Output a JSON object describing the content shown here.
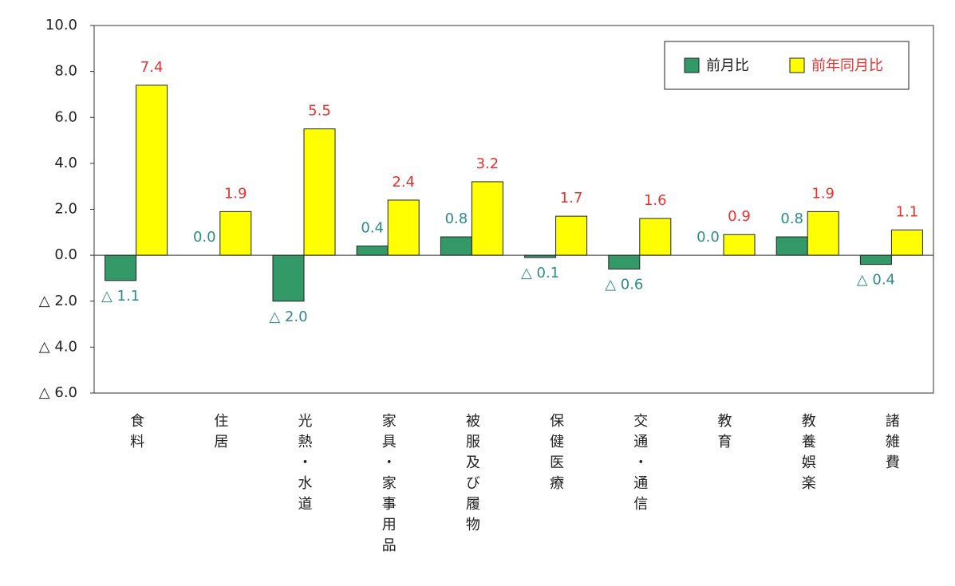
{
  "chart_data": {
    "type": "bar",
    "categories": [
      "食料",
      "住居",
      "光熱・水道",
      "家具・家事用品",
      "被服及び履物",
      "保健医療",
      "交通・通信",
      "教育",
      "教養娯楽",
      "諸雑費"
    ],
    "series": [
      {
        "name": "前月比",
        "color": "#339966",
        "label_color": "#2e8b8b",
        "values": [
          -1.1,
          0.0,
          -2.0,
          0.4,
          0.8,
          -0.1,
          -0.6,
          0.0,
          0.8,
          -0.4
        ],
        "value_labels": [
          "△ 1.1",
          "0.0",
          "△ 2.0",
          "0.4",
          "0.8",
          "△ 0.1",
          "△ 0.6",
          "0.0",
          "0.8",
          "△ 0.4"
        ]
      },
      {
        "name": "前年同月比",
        "color": "#ffff00",
        "label_color": "#e8312f",
        "values": [
          7.4,
          1.9,
          5.5,
          2.4,
          3.2,
          1.7,
          1.6,
          0.9,
          1.9,
          1.1
        ]
      }
    ],
    "ylim": [
      -6,
      10
    ],
    "yticks": [
      {
        "value": 10,
        "label": "10.0"
      },
      {
        "value": 8,
        "label": "8.0"
      },
      {
        "value": 6,
        "label": "6.0"
      },
      {
        "value": 4,
        "label": "4.0"
      },
      {
        "value": 2,
        "label": "2.0"
      },
      {
        "value": 0,
        "label": "0.0"
      },
      {
        "value": -2,
        "label": "△ 2.0"
      },
      {
        "value": -4,
        "label": "△ 4.0"
      },
      {
        "value": -6,
        "label": "△ 6.0"
      }
    ],
    "grid": false,
    "legend": "top-right"
  }
}
